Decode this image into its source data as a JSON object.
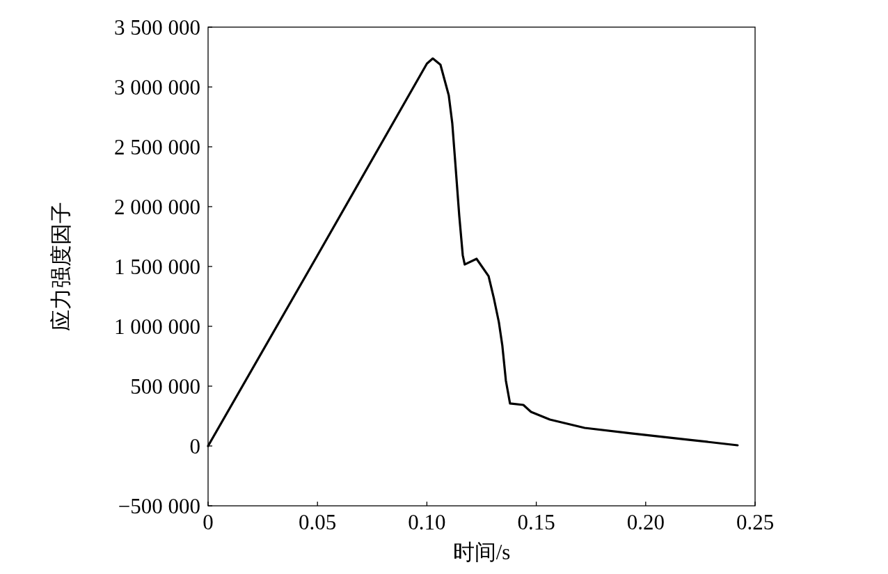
{
  "chart_data": {
    "type": "line",
    "xlabel": "时间/s",
    "ylabel": "应力强度因子",
    "x": [
      0,
      0.05,
      0.1,
      0.1027,
      0.1062,
      0.11,
      0.1116,
      0.1132,
      0.1148,
      0.1164,
      0.1173,
      0.1227,
      0.1282,
      0.1307,
      0.1329,
      0.1345,
      0.1361,
      0.138,
      0.1441,
      0.1476,
      0.1562,
      0.1721,
      0.1934,
      0.2198,
      0.242
    ],
    "series": [
      {
        "color": "#000000",
        "values": [
          0,
          1593000,
          3195000,
          3238000,
          3186000,
          2930000,
          2698000,
          2314000,
          1924000,
          1593000,
          1517000,
          1564000,
          1419000,
          1227000,
          1035000,
          837000,
          547000,
          355000,
          343000,
          285000,
          221000,
          151000,
          105000,
          52000,
          6000
        ]
      }
    ],
    "xlim": [
      0,
      0.25
    ],
    "xticks": [
      0,
      0.05,
      {
        "value": 0.1,
        "label": "0.10"
      },
      0.15,
      {
        "value": 0.2,
        "label": "0.20"
      },
      0.25
    ],
    "ylim": [
      -500000,
      3500000
    ],
    "yticks": [
      {
        "value": -500000,
        "label": "−500 000"
      },
      0,
      {
        "value": 500000,
        "label": "500 000"
      },
      {
        "value": 1000000,
        "label": "1 000 000"
      },
      {
        "value": 1500000,
        "label": "1 500 000"
      },
      {
        "value": 2000000,
        "label": "2 000 000"
      },
      {
        "value": 2500000,
        "label": "2 500 000"
      },
      {
        "value": 3000000,
        "label": "3 000 000"
      },
      {
        "value": 3500000,
        "label": "3 500 000"
      }
    ],
    "grid": false,
    "marker": "none",
    "line_style": "solid"
  }
}
